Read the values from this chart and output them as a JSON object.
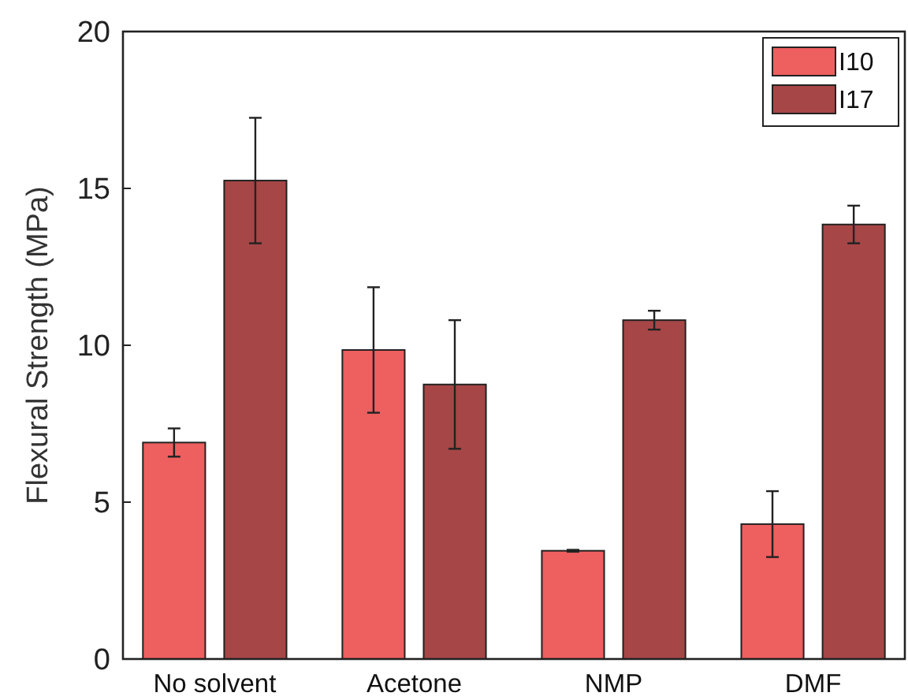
{
  "chart_data": {
    "type": "bar",
    "ylabel": "Flexural Strength (MPa)",
    "categories": [
      "No solvent",
      "Acetone",
      "NMP",
      "DMF"
    ],
    "ylim": [
      0,
      20
    ],
    "yticks": [
      0,
      5,
      10,
      15,
      20
    ],
    "grid": false,
    "legend": "top right",
    "series": [
      {
        "name": "I10",
        "color": "#ee5f5f",
        "values": [
          6.9,
          9.85,
          3.45,
          4.3
        ],
        "errors": [
          0.45,
          2.0,
          0.03,
          1.05
        ]
      },
      {
        "name": "I17",
        "color": "#a64646",
        "values": [
          15.25,
          8.75,
          10.8,
          13.85
        ],
        "errors": [
          2.0,
          2.05,
          0.3,
          0.6
        ]
      }
    ]
  }
}
